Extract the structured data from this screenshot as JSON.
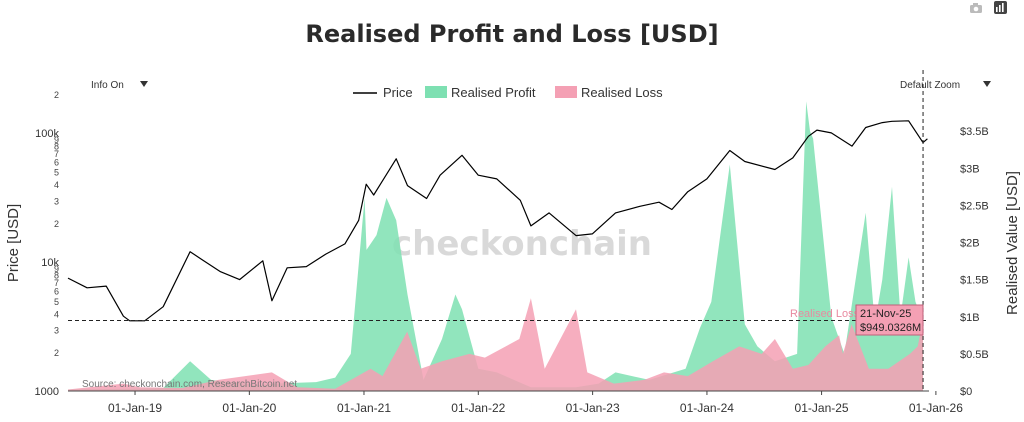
{
  "chart_data": {
    "type": "area",
    "title": "Realised Profit and Loss [USD]",
    "ylabel_left": "Price [USD]",
    "ylabel_right": "Realised Value [USD]",
    "y_left_scale": "log",
    "y_left_range": [
      1000,
      200000
    ],
    "y_left_ticks": [
      "1000",
      "2",
      "3",
      "4",
      "5",
      "6",
      "7",
      "8",
      "9",
      "10k",
      "2",
      "3",
      "4",
      "5",
      "6",
      "7",
      "8",
      "9",
      "100k",
      "2"
    ],
    "y_right_range": [
      0,
      4000000000
    ],
    "y_right_ticks": [
      "$0",
      "$0.5B",
      "$1B",
      "$1.5B",
      "$2B",
      "$2.5B",
      "$3B",
      "$3.5B"
    ],
    "x_range": [
      "2018-06-01",
      "2025-12-10"
    ],
    "x_ticks": [
      "01-Jan-19",
      "01-Jan-20",
      "01-Jan-21",
      "01-Jan-22",
      "01-Jan-23",
      "01-Jan-24",
      "01-Jan-25",
      "01-Jan-26"
    ],
    "legend": [
      "Price",
      "Realised Profit",
      "Realised Loss"
    ],
    "legend_position": "top-center",
    "series": [
      {
        "name": "Price",
        "color": "#000000",
        "x": [
          "2018-06-01",
          "2018-08-01",
          "2018-10-01",
          "2018-11-25",
          "2018-12-15",
          "2019-02-01",
          "2019-04-01",
          "2019-06-26",
          "2019-08-01",
          "2019-10-01",
          "2019-12-01",
          "2020-02-13",
          "2020-03-13",
          "2020-05-01",
          "2020-07-01",
          "2020-09-01",
          "2020-11-01",
          "2020-12-15",
          "2021-01-08",
          "2021-02-01",
          "2021-04-14",
          "2021-05-20",
          "2021-07-20",
          "2021-09-01",
          "2021-11-10",
          "2022-01-01",
          "2022-03-01",
          "2022-05-15",
          "2022-06-18",
          "2022-08-15",
          "2022-11-09",
          "2022-12-31",
          "2023-03-15",
          "2023-06-01",
          "2023-08-01",
          "2023-09-11",
          "2023-11-01",
          "2024-01-01",
          "2024-03-14",
          "2024-05-01",
          "2024-08-05",
          "2024-10-01",
          "2024-11-20",
          "2024-12-17",
          "2025-02-01",
          "2025-04-08",
          "2025-05-22",
          "2025-07-14",
          "2025-08-14",
          "2025-10-06",
          "2025-11-21",
          "2025-12-05"
        ],
        "values": [
          7500,
          6300,
          6500,
          3800,
          3500,
          3500,
          4500,
          12000,
          10500,
          8400,
          7300,
          10200,
          5000,
          9000,
          9200,
          11500,
          13800,
          21000,
          40000,
          33000,
          63000,
          39000,
          31000,
          47000,
          67000,
          47000,
          44000,
          30000,
          19000,
          24000,
          16000,
          16500,
          24000,
          27000,
          29000,
          25500,
          35000,
          44000,
          73000,
          60000,
          52000,
          64000,
          94000,
          105000,
          100000,
          79000,
          110000,
          120000,
          123000,
          124000,
          84000,
          90000
        ]
      },
      {
        "name": "Realised Profit",
        "color": "#7ee0b2",
        "x": [
          "2018-06-01",
          "2018-12-01",
          "2019-04-01",
          "2019-06-26",
          "2019-09-01",
          "2020-02-01",
          "2020-03-13",
          "2020-08-01",
          "2020-10-01",
          "2020-11-20",
          "2021-01-03",
          "2021-01-09",
          "2021-02-10",
          "2021-03-14",
          "2021-04-14",
          "2021-05-20",
          "2021-07-10",
          "2021-09-07",
          "2021-10-20",
          "2021-11-10",
          "2022-01-01",
          "2022-03-01",
          "2022-06-18",
          "2022-11-09",
          "2023-01-20",
          "2023-03-15",
          "2023-07-01",
          "2023-10-25",
          "2023-12-10",
          "2024-01-15",
          "2024-03-14",
          "2024-05-01",
          "2024-06-10",
          "2024-08-05",
          "2024-10-15",
          "2024-11-13",
          "2024-11-25",
          "2024-12-05",
          "2024-12-17",
          "2025-02-01",
          "2025-03-15",
          "2025-05-22",
          "2025-06-20",
          "2025-07-14",
          "2025-08-14",
          "2025-09-10",
          "2025-10-06",
          "2025-10-28",
          "2025-11-21"
        ],
        "values": [
          20000000,
          30000000,
          40000000,
          400000000,
          150000000,
          80000000,
          100000000,
          120000000,
          180000000,
          500000000,
          2600000000,
          1900000000,
          2100000000,
          2600000000,
          2300000000,
          1300000000,
          150000000,
          700000000,
          1300000000,
          1100000000,
          300000000,
          250000000,
          50000000,
          50000000,
          100000000,
          250000000,
          150000000,
          300000000,
          850000000,
          1200000000,
          3050000000,
          900000000,
          600000000,
          400000000,
          500000000,
          3900000000,
          3500000000,
          3400000000,
          2900000000,
          1000000000,
          500000000,
          2400000000,
          900000000,
          1500000000,
          2750000000,
          1000000000,
          1800000000,
          1200000000,
          949032600
        ]
      },
      {
        "name": "Realised Loss",
        "color": "#f4a0b4",
        "x": [
          "2018-06-01",
          "2018-11-25",
          "2019-01-15",
          "2019-06-01",
          "2019-09-24",
          "2020-03-13",
          "2020-06-01",
          "2020-10-01",
          "2021-01-22",
          "2021-03-01",
          "2021-05-19",
          "2021-07-01",
          "2021-09-07",
          "2021-12-04",
          "2022-01-22",
          "2022-05-12",
          "2022-06-18",
          "2022-08-01",
          "2022-11-09",
          "2022-12-15",
          "2023-03-10",
          "2023-06-15",
          "2023-08-17",
          "2023-11-01",
          "2024-01-20",
          "2024-04-13",
          "2024-06-24",
          "2024-08-05",
          "2024-10-01",
          "2024-11-20",
          "2025-01-13",
          "2025-02-26",
          "2025-03-10",
          "2025-04-07",
          "2025-06-01",
          "2025-08-02",
          "2025-10-10",
          "2025-11-04",
          "2025-11-21"
        ],
        "values": [
          20000000,
          100000000,
          50000000,
          40000000,
          150000000,
          250000000,
          50000000,
          30000000,
          300000000,
          200000000,
          800000000,
          300000000,
          400000000,
          500000000,
          450000000,
          700000000,
          1250000000,
          300000000,
          1100000000,
          250000000,
          100000000,
          150000000,
          250000000,
          200000000,
          400000000,
          600000000,
          500000000,
          700000000,
          300000000,
          350000000,
          600000000,
          750000000,
          500000000,
          900000000,
          300000000,
          300000000,
          500000000,
          600000000,
          949032600
        ]
      }
    ],
    "hline": {
      "value": 949032600,
      "style": "dashed"
    },
    "vline": {
      "x": "2025-11-21",
      "style": "dashed"
    },
    "tooltip": {
      "series": "Realised Loss",
      "date": "21-Nov-25",
      "value": "$949.0326M"
    },
    "grid": false
  },
  "ui": {
    "info_menu": "Info On",
    "zoom_menu": "Default Zoom",
    "watermark": "checkonchain",
    "source": "Source: checkonchain.com, ResearchBitcoin.net",
    "camera_icon": "camera-icon",
    "plot_logo_icon": "plotly-logo-icon",
    "dropdown_icon": "caret-down-icon"
  }
}
